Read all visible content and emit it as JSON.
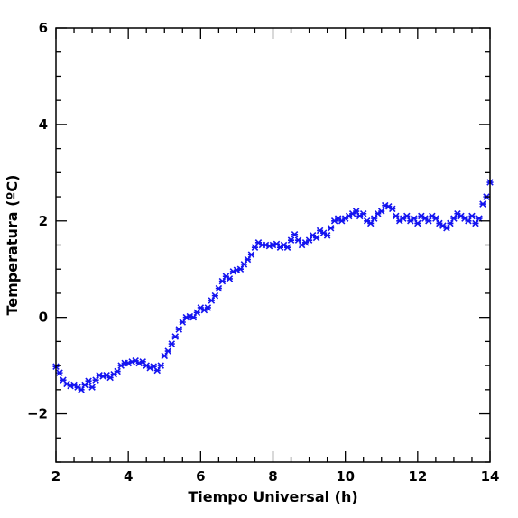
{
  "chart_data": {
    "type": "scatter",
    "title": "",
    "xlabel": "Tiempo Universal (h)",
    "ylabel": "Temperatura (ºC)",
    "xlim": [
      2,
      14
    ],
    "ylim": [
      -3,
      6
    ],
    "x_ticks": [
      2,
      4,
      6,
      8,
      10,
      12,
      14
    ],
    "y_ticks": [
      -2,
      0,
      2,
      4,
      6
    ],
    "x_minor_step": 0.5,
    "y_minor_step": 0.5,
    "grid": false,
    "legend": "none",
    "marker": "star",
    "marker_color": "#1414f0",
    "series": [
      {
        "x": [
          2.0,
          2.1,
          2.2,
          2.3,
          2.4,
          2.5,
          2.6,
          2.7,
          2.8,
          2.9,
          3.0,
          3.1,
          3.2,
          3.3,
          3.4,
          3.5,
          3.6,
          3.7,
          3.8,
          3.9,
          4.0,
          4.1,
          4.2,
          4.3,
          4.4,
          4.5,
          4.6,
          4.7,
          4.8,
          4.9,
          5.0,
          5.1,
          5.2,
          5.3,
          5.4,
          5.5,
          5.6,
          5.7,
          5.8,
          5.9,
          6.0,
          6.1,
          6.2,
          6.3,
          6.4,
          6.5,
          6.6,
          6.7,
          6.8,
          6.9,
          7.0,
          7.1,
          7.2,
          7.3,
          7.4,
          7.5,
          7.6,
          7.7,
          7.8,
          7.9,
          8.0,
          8.1,
          8.2,
          8.3,
          8.4,
          8.5,
          8.6,
          8.7,
          8.8,
          8.9,
          9.0,
          9.1,
          9.2,
          9.3,
          9.4,
          9.5,
          9.6,
          9.7,
          9.8,
          9.9,
          10.0,
          10.1,
          10.2,
          10.3,
          10.4,
          10.5,
          10.6,
          10.7,
          10.8,
          10.9,
          11.0,
          11.1,
          11.2,
          11.3,
          11.4,
          11.5,
          11.6,
          11.7,
          11.8,
          11.9,
          12.0,
          12.1,
          12.2,
          12.3,
          12.4,
          12.5,
          12.6,
          12.7,
          12.8,
          12.9,
          13.0,
          13.1,
          13.2,
          13.3,
          13.4,
          13.5,
          13.6,
          13.7,
          13.8,
          13.9,
          14.0
        ],
        "y": [
          -1.02,
          -1.15,
          -1.3,
          -1.38,
          -1.42,
          -1.4,
          -1.45,
          -1.5,
          -1.4,
          -1.32,
          -1.45,
          -1.3,
          -1.2,
          -1.22,
          -1.2,
          -1.25,
          -1.18,
          -1.12,
          -1.0,
          -0.95,
          -0.95,
          -0.92,
          -0.9,
          -0.95,
          -0.92,
          -1.0,
          -1.05,
          -1.02,
          -1.1,
          -1.0,
          -0.8,
          -0.7,
          -0.55,
          -0.4,
          -0.25,
          -0.1,
          0.0,
          0.02,
          0.0,
          0.1,
          0.2,
          0.15,
          0.2,
          0.35,
          0.45,
          0.6,
          0.75,
          0.85,
          0.8,
          0.95,
          0.98,
          1.0,
          1.1,
          1.2,
          1.3,
          1.45,
          1.55,
          1.5,
          1.5,
          1.48,
          1.5,
          1.52,
          1.45,
          1.5,
          1.45,
          1.6,
          1.72,
          1.6,
          1.5,
          1.55,
          1.6,
          1.7,
          1.65,
          1.8,
          1.75,
          1.7,
          1.85,
          2.0,
          2.05,
          2.0,
          2.05,
          2.1,
          2.15,
          2.2,
          2.1,
          2.15,
          2.0,
          1.95,
          2.05,
          2.15,
          2.2,
          2.32,
          2.3,
          2.25,
          2.1,
          2.0,
          2.05,
          2.1,
          2.0,
          2.05,
          1.95,
          2.1,
          2.05,
          2.0,
          2.1,
          2.05,
          1.95,
          1.9,
          1.85,
          1.95,
          2.05,
          2.15,
          2.1,
          2.05,
          2.0,
          2.1,
          1.95,
          2.05,
          2.35,
          2.5,
          2.8
        ]
      }
    ]
  }
}
